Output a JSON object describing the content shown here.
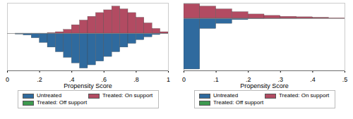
{
  "chart_data": [
    {
      "type": "histogram",
      "xlabel": "Propensity Score",
      "bins": [
        0,
        0.05,
        0.1,
        0.15,
        0.2,
        0.25,
        0.3,
        0.35,
        0.4,
        0.45,
        0.5,
        0.55,
        0.6,
        0.65,
        0.7,
        0.75,
        0.8,
        0.85,
        0.9,
        0.95,
        1
      ],
      "series": [
        {
          "name": "Untreated",
          "color": "#2f6a9e",
          "values": [
            0,
            -2,
            -4,
            -10,
            -20,
            -30,
            -40,
            -52,
            -64,
            -75,
            -68,
            -60,
            -50,
            -40,
            -30,
            -22,
            -14,
            -8,
            -3,
            -1
          ]
        },
        {
          "name": "Treated: On support",
          "color": "#b24b62",
          "values": [
            0,
            0,
            0,
            0,
            0,
            1,
            3,
            8,
            18,
            28,
            36,
            44,
            50,
            58,
            52,
            44,
            34,
            22,
            10,
            3
          ]
        },
        {
          "name": "Treated: Off support",
          "color": "#3d9a4f",
          "values": [
            0,
            0,
            0,
            0,
            0,
            0,
            0,
            0,
            0,
            0,
            0,
            0,
            0,
            0,
            0,
            0,
            0,
            0,
            0,
            0
          ]
        }
      ],
      "xlim": [
        0,
        1
      ],
      "xticks": [
        0,
        {
          "value": 0.2,
          "label": ".2"
        },
        {
          "value": 0.4,
          "label": ".4"
        },
        {
          "value": 0.6,
          "label": ".6"
        },
        {
          "value": 0.8,
          "label": ".8"
        },
        1
      ],
      "ylim": [
        -80,
        65
      ],
      "tick_labels": "x",
      "legend": "bottom"
    },
    {
      "type": "histogram",
      "xlabel": "Propensity Score",
      "bins": [
        0,
        0.05,
        0.1,
        0.15,
        0.2,
        0.25,
        0.3,
        0.35,
        0.4,
        0.45,
        0.5
      ],
      "series": [
        {
          "name": "Untreated",
          "color": "#2f6a9e",
          "values": [
            -109,
            -22,
            -11,
            -3,
            -1,
            -0.5,
            -0.3,
            -0.2,
            -0.1,
            0
          ]
        },
        {
          "name": "Treated: On support",
          "color": "#b24b62",
          "values": [
            31,
            26,
            20,
            14,
            9,
            6,
            4,
            3,
            2,
            1
          ]
        },
        {
          "name": "Treated: Off support",
          "color": "#3d9a4f",
          "values": [
            0,
            0,
            0,
            0,
            0,
            0,
            0,
            0,
            0,
            0
          ]
        }
      ],
      "xlim": [
        0,
        0.5
      ],
      "xticks": [
        0,
        {
          "value": 0.1,
          "label": ".1"
        },
        {
          "value": 0.2,
          "label": ".2"
        },
        {
          "value": 0.3,
          "label": ".3"
        },
        {
          "value": 0.4,
          "label": ".4"
        },
        {
          "value": 0.5,
          "label": ".5"
        }
      ],
      "ylim": [
        -112,
        33
      ],
      "tick_labels": "x",
      "legend": "bottom"
    }
  ]
}
